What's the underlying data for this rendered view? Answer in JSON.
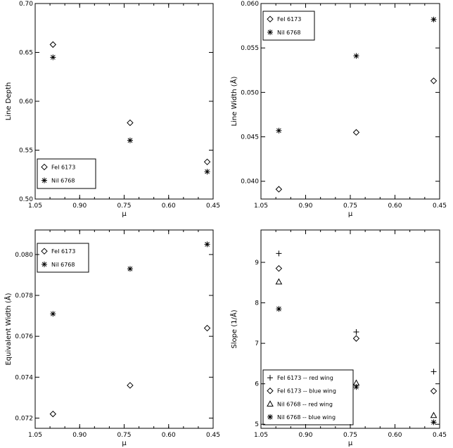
{
  "chart_data": [
    {
      "type": "scatter",
      "panel": "top-left",
      "xlabel": "μ",
      "ylabel": "Line Depth",
      "xlim": [
        1.05,
        0.45
      ],
      "ylim": [
        0.5,
        0.7
      ],
      "xticks": [
        "1.05",
        "0.90",
        "0.75",
        "0.60",
        "0.45"
      ],
      "yticks": [
        "0.50",
        "0.55",
        "0.60",
        "0.65",
        "0.70"
      ],
      "legend_position": "bottom-left",
      "series": [
        {
          "name": "FeI 6173",
          "marker": "diamond",
          "x": [
            0.99,
            0.73,
            0.47
          ],
          "y": [
            0.658,
            0.578,
            0.538
          ]
        },
        {
          "name": "NiI 6768",
          "marker": "asterisk",
          "x": [
            0.99,
            0.73,
            0.47
          ],
          "y": [
            0.645,
            0.56,
            0.528
          ]
        }
      ]
    },
    {
      "type": "scatter",
      "panel": "top-right",
      "xlabel": "μ",
      "ylabel": "Line Width (Å)",
      "xlim": [
        1.05,
        0.45
      ],
      "ylim": [
        0.038,
        0.06
      ],
      "xticks": [
        "1.05",
        "0.90",
        "0.75",
        "0.60",
        "0.45"
      ],
      "yticks": [
        "0.040",
        "0.045",
        "0.050",
        "0.055",
        "0.060"
      ],
      "legend_position": "top-left",
      "series": [
        {
          "name": "FeI 6173",
          "marker": "diamond",
          "x": [
            0.99,
            0.73,
            0.47
          ],
          "y": [
            0.0391,
            0.0455,
            0.0513
          ]
        },
        {
          "name": "NiI 6768",
          "marker": "asterisk",
          "x": [
            0.99,
            0.73,
            0.47
          ],
          "y": [
            0.0457,
            0.0541,
            0.0582
          ]
        }
      ]
    },
    {
      "type": "scatter",
      "panel": "bottom-left",
      "xlabel": "μ",
      "ylabel": "Equivalent Width (Å)",
      "xlim": [
        1.05,
        0.45
      ],
      "ylim": [
        0.0715,
        0.0812
      ],
      "xticks": [
        "1.05",
        "0.90",
        "0.75",
        "0.60",
        "0.45"
      ],
      "yticks": [
        "0.072",
        "0.074",
        "0.076",
        "0.078",
        "0.080"
      ],
      "legend_position": "top-left",
      "series": [
        {
          "name": "FeI 6173",
          "marker": "diamond",
          "x": [
            0.99,
            0.73,
            0.47
          ],
          "y": [
            0.0722,
            0.0736,
            0.0764
          ]
        },
        {
          "name": "NiI 6768",
          "marker": "asterisk",
          "x": [
            0.99,
            0.73,
            0.47
          ],
          "y": [
            0.0771,
            0.0793,
            0.0805
          ]
        }
      ]
    },
    {
      "type": "scatter",
      "panel": "bottom-right",
      "xlabel": "μ",
      "ylabel": "Slope (1/Å)",
      "xlim": [
        1.05,
        0.45
      ],
      "ylim": [
        4.9,
        9.8
      ],
      "xticks": [
        "1.05",
        "0.90",
        "0.75",
        "0.60",
        "0.45"
      ],
      "yticks": [
        "5",
        "6",
        "7",
        "8",
        "9"
      ],
      "legend_position": "bottom-left",
      "series": [
        {
          "name": "FeI 6173 -- red wing",
          "marker": "plus",
          "x": [
            0.99,
            0.73,
            0.47
          ],
          "y": [
            9.22,
            7.28,
            6.3
          ]
        },
        {
          "name": "FeI 6173 -- blue wing",
          "marker": "diamond",
          "x": [
            0.99,
            0.73,
            0.47
          ],
          "y": [
            8.85,
            7.12,
            5.82
          ]
        },
        {
          "name": "NiI 6768 -- red wing",
          "marker": "triangle",
          "x": [
            0.99,
            0.73,
            0.47
          ],
          "y": [
            8.52,
            6.02,
            5.22
          ]
        },
        {
          "name": "NiI 6768 -- blue wing",
          "marker": "asterisk",
          "x": [
            0.99,
            0.73,
            0.47
          ],
          "y": [
            7.85,
            5.92,
            5.05
          ]
        }
      ]
    }
  ]
}
